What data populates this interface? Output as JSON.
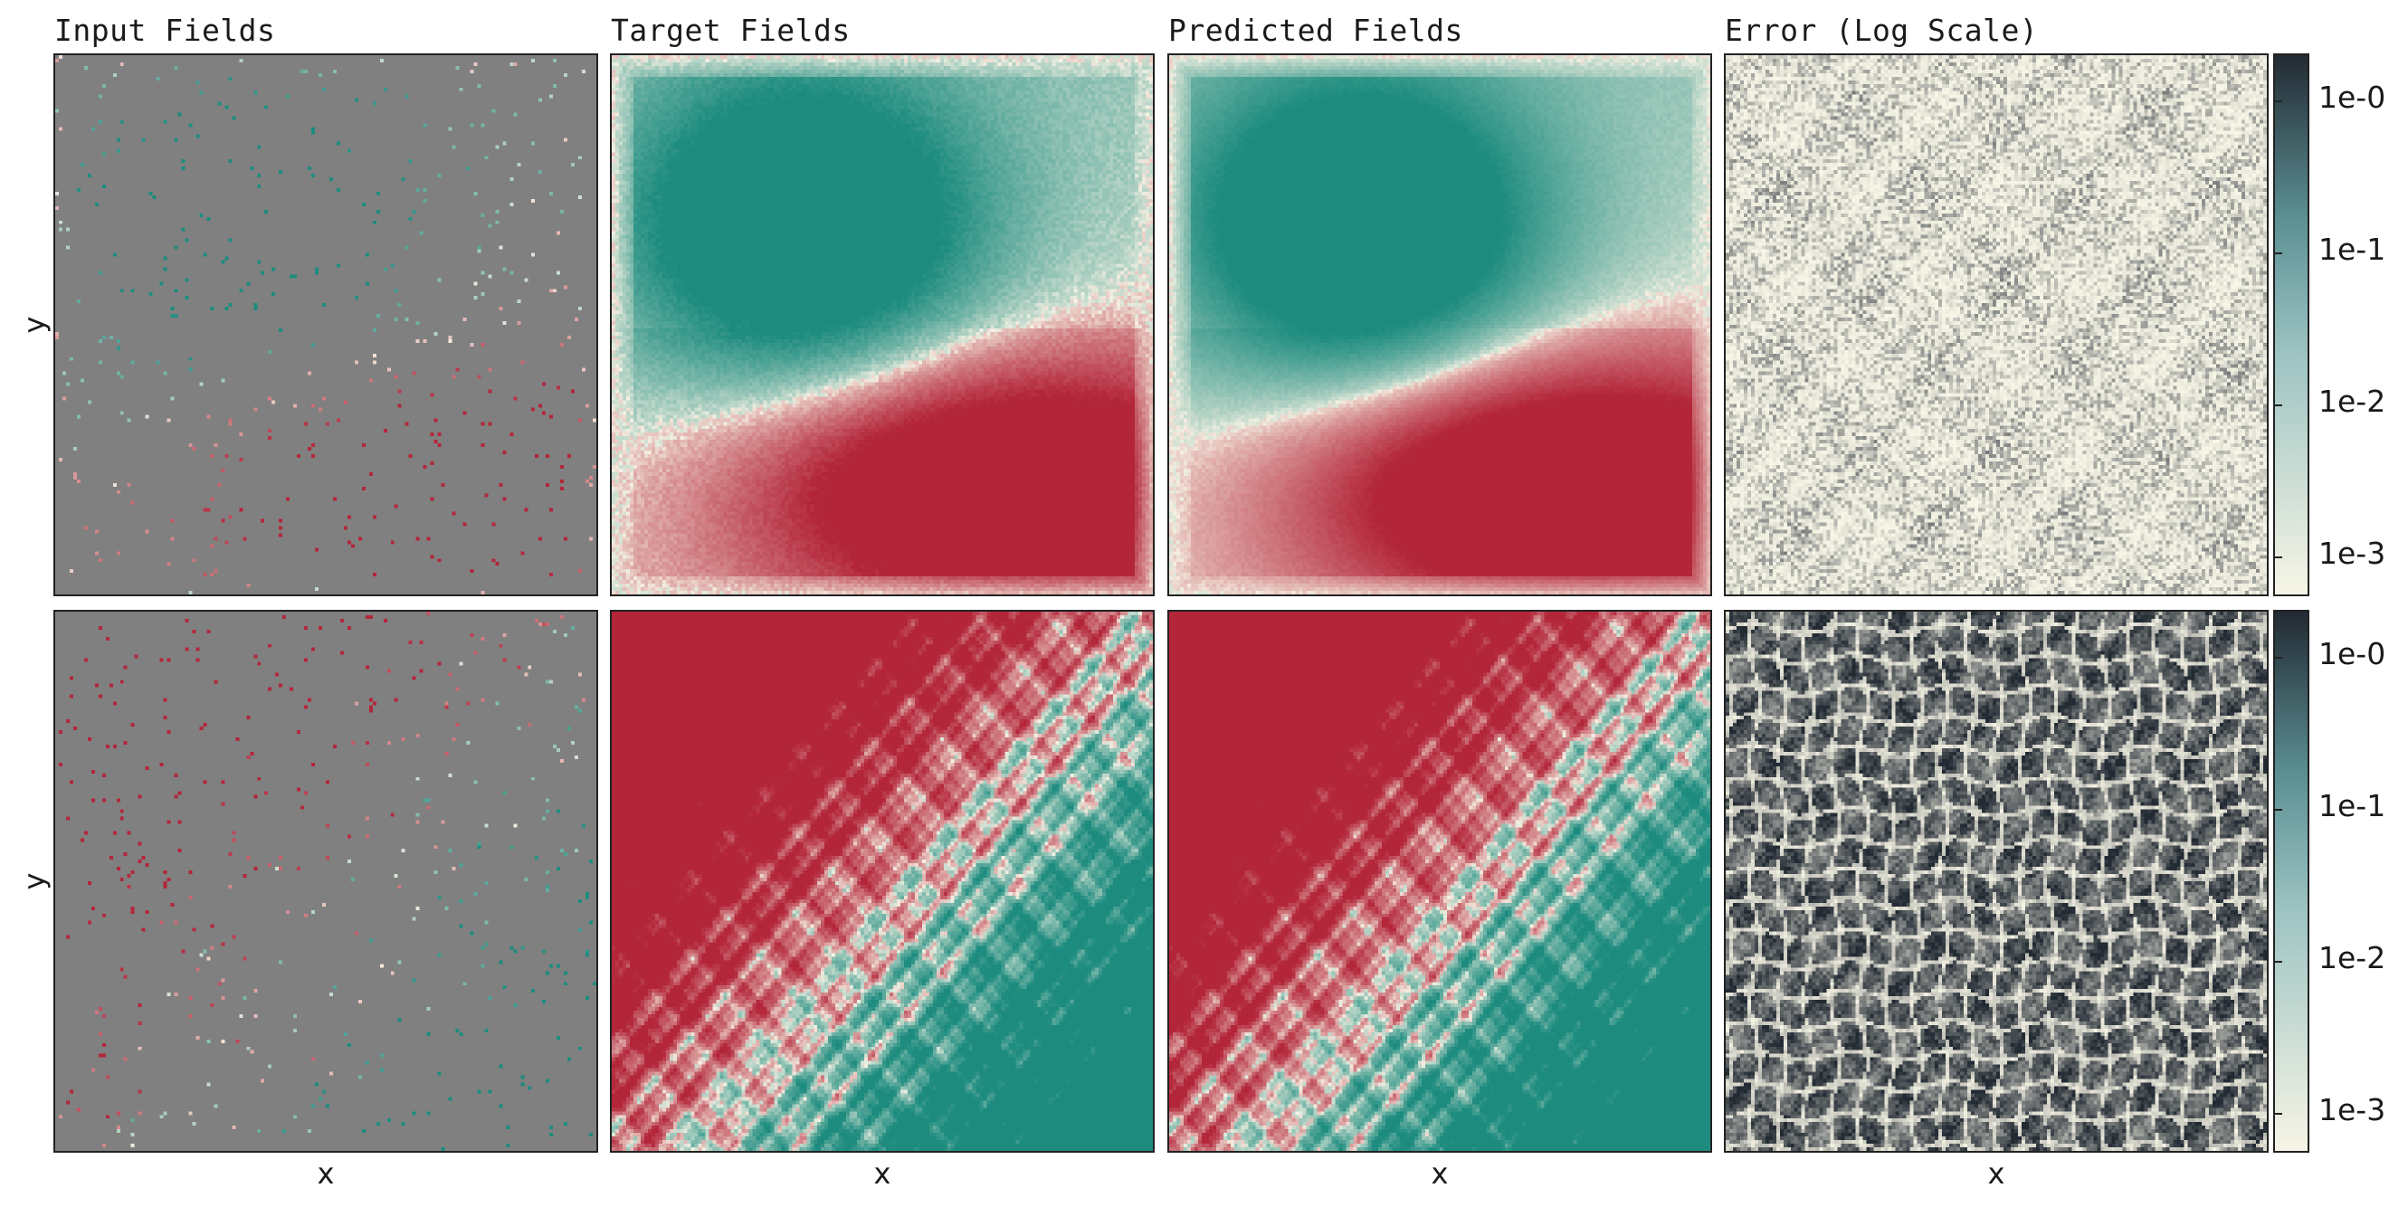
{
  "column_titles": [
    "Input Fields",
    "Target Fields",
    "Predicted Fields",
    "Error (Log Scale)"
  ],
  "axis_labels": {
    "x": "x",
    "y": "y"
  },
  "colorbar_ticks": [
    "1e-0",
    "1e-1",
    "1e-2",
    "1e-3"
  ],
  "colors": {
    "field_positive": "#1d8c7f",
    "field_mid": "#f6f2e4",
    "field_negative": "#b3263a",
    "input_background": "#808080",
    "error_low": "#f7f5e6",
    "error_high": "#222a33"
  },
  "chart_data": {
    "type": "heatmap",
    "grid": {
      "rows": 2,
      "cols": 4
    },
    "error_scale": "log",
    "error_range": [
      0.001,
      1
    ],
    "panels": [
      {
        "row": 0,
        "col": 0,
        "kind": "sparse-input",
        "pattern": "A"
      },
      {
        "row": 0,
        "col": 1,
        "kind": "field",
        "pattern": "A"
      },
      {
        "row": 0,
        "col": 2,
        "kind": "field",
        "pattern": "A"
      },
      {
        "row": 0,
        "col": 3,
        "kind": "error",
        "level": "low"
      },
      {
        "row": 1,
        "col": 0,
        "kind": "sparse-input",
        "pattern": "B"
      },
      {
        "row": 1,
        "col": 1,
        "kind": "field",
        "pattern": "B"
      },
      {
        "row": 1,
        "col": 2,
        "kind": "field",
        "pattern": "B"
      },
      {
        "row": 1,
        "col": 3,
        "kind": "error",
        "level": "high"
      }
    ]
  }
}
